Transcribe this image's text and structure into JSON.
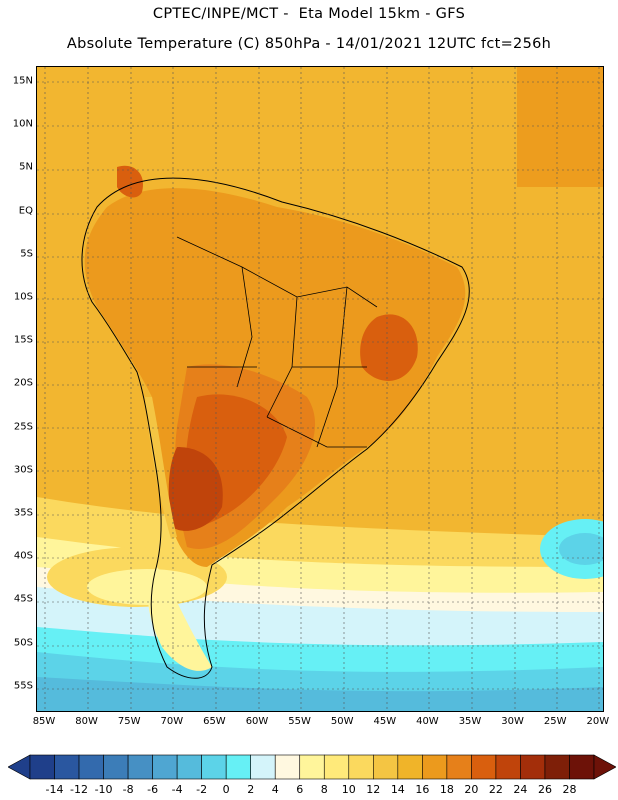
{
  "header": {
    "line1": "CPTEC/INPE/MCT -  Eta Model 15km - GFS",
    "line2": "Absolute Temperature (C) 850hPa - 14/01/2021 12UTC fct=256h"
  },
  "map": {
    "lat_labels": [
      "15N",
      "10N",
      "5N",
      "EQ",
      "5S",
      "10S",
      "15S",
      "20S",
      "25S",
      "30S",
      "35S",
      "40S",
      "45S",
      "50S",
      "55S"
    ],
    "lon_labels": [
      "85W",
      "80W",
      "75W",
      "70W",
      "65W",
      "60W",
      "55W",
      "50W",
      "45W",
      "40W",
      "35W",
      "30W",
      "25W",
      "20W"
    ],
    "lat_values": [
      15,
      10,
      5,
      0,
      -5,
      -10,
      -15,
      -20,
      -25,
      -30,
      -35,
      -40,
      -45,
      -50,
      -55
    ],
    "lon_values": [
      -85,
      -80,
      -75,
      -70,
      -65,
      -60,
      -55,
      -50,
      -45,
      -40,
      -35,
      -30,
      -25,
      -20
    ]
  },
  "colorbar": {
    "labels": [
      "-14",
      "-12",
      "-10",
      "-8",
      "-6",
      "-4",
      "-2",
      "0",
      "2",
      "4",
      "6",
      "8",
      "10",
      "12",
      "14",
      "16",
      "18",
      "20",
      "22",
      "24",
      "26",
      "28"
    ],
    "colors": [
      "#1f3f8a",
      "#2a57a0",
      "#336aad",
      "#3c7db8",
      "#4690c4",
      "#4fa6d2",
      "#55bbdc",
      "#5cd3e8",
      "#66f0f5",
      "#d4f4fa",
      "#fff8e0",
      "#fff59b",
      "#ffea7a",
      "#fbd95e",
      "#f4c543",
      "#f0b429",
      "#ec9a1d",
      "#e6801a",
      "#d95f0e",
      "#c0440b",
      "#a32e0a",
      "#7e1f08",
      "#6d1208"
    ]
  }
}
